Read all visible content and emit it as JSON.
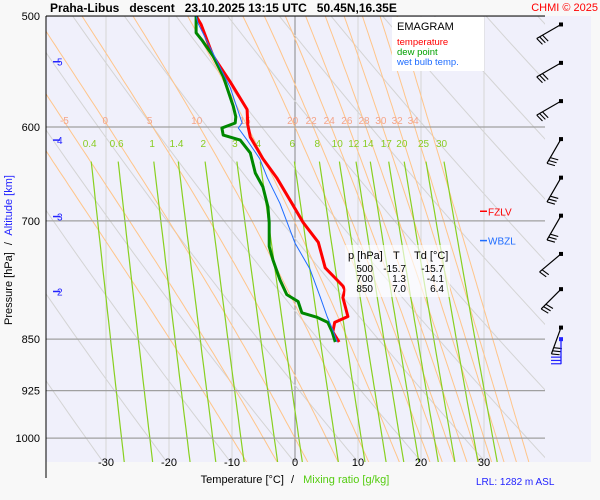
{
  "header": {
    "title": "Praha-Libus   descent   23.10.2025 13:15 UTC   50.45N,16.35E",
    "copyright": "CHMI © 2025"
  },
  "chart_data": {
    "type": "line",
    "diagram": "EMAGRAM",
    "xlabel_temp": "Temperature [°C]",
    "xlabel_sep": "/",
    "xlabel_mix": "Mixing ratio [g/kg]",
    "ylabel_pressure": "Pressure [hPa]",
    "ylabel_sep": "/",
    "ylabel_alt": "Altitude [km]",
    "xlim": [
      -39.5,
      39.7
    ],
    "ylim_hpa": [
      1040,
      500
    ],
    "x_ticks": [
      "-30",
      "-20",
      "-10",
      "0",
      "10",
      "20",
      "30"
    ],
    "x_tick_values": [
      -30,
      -20,
      -10,
      0,
      10,
      20,
      30
    ],
    "p_ticks": [
      "500",
      "600",
      "700",
      "850",
      "925",
      "1000"
    ],
    "p_tick_values": [
      500,
      600,
      700,
      850,
      925,
      1000
    ],
    "alt_ticks": [
      {
        "label": "5",
        "p": 539
      },
      {
        "label": "4",
        "p": 613
      },
      {
        "label": "3",
        "p": 695
      },
      {
        "label": "2",
        "p": 786
      }
    ],
    "mixing_ratio_labels": [
      "0.4",
      "0.6",
      "1",
      "1.4",
      "2",
      "3",
      "4",
      "6",
      "8",
      "10",
      "12",
      "14",
      "17",
      "20",
      "25",
      "30"
    ],
    "moist_adiabat_labels": [
      "-5",
      "0",
      "5",
      "10",
      "15",
      "20",
      "22",
      "24",
      "26",
      "28",
      "30",
      "32",
      "34"
    ],
    "legend": [
      {
        "label": "temperature",
        "color": "#ff0000"
      },
      {
        "label": "dew point",
        "color": "#00a000"
      },
      {
        "label": "wet bulb temp.",
        "color": "#1e6cff"
      }
    ],
    "series": [
      {
        "name": "temperature",
        "color": "#ff0000",
        "p": [
          500,
          507,
          534,
          557,
          583,
          598,
          610,
          632,
          652,
          680,
          702,
          725,
          756,
          779,
          784,
          794,
          819,
          827,
          840,
          854
        ],
        "t": [
          -15.7,
          -14.9,
          -13.0,
          -10.3,
          -7.6,
          -7.5,
          -7.1,
          -5.1,
          -2.9,
          -0.5,
          1.3,
          3.7,
          4.8,
          7.6,
          7.9,
          7.6,
          8.4,
          6.3,
          6.0,
          7.0
        ]
      },
      {
        "name": "dew point",
        "color": "#008800",
        "p": [
          500,
          514,
          520,
          534,
          552,
          580,
          590,
          596,
          601,
          608,
          613,
          626,
          647,
          662,
          684,
          702,
          730,
          746,
          771,
          790,
          799,
          814,
          820,
          827,
          840,
          854
        ],
        "t": [
          -15.7,
          -15.7,
          -14.8,
          -13.0,
          -11.4,
          -9.8,
          -9.4,
          -9.5,
          -11.6,
          -11.4,
          -8.7,
          -7.1,
          -6.3,
          -5.1,
          -4.3,
          -4.1,
          -4.1,
          -3.5,
          -2.4,
          -1.3,
          0.5,
          1.1,
          3.5,
          5.2,
          5.9,
          6.4
        ]
      },
      {
        "name": "wet bulb temp.",
        "color": "#1e6cff",
        "p": [
          500,
          506,
          562,
          596,
          601,
          613,
          632,
          652,
          680,
          726,
          758,
          793,
          819,
          837,
          854
        ],
        "t": [
          -15.7,
          -15.4,
          -10.3,
          -8.4,
          -9.0,
          -7.6,
          -5.6,
          -4.4,
          -2.4,
          0.0,
          2.4,
          4.0,
          5.1,
          6.0,
          6.7
        ]
      }
    ],
    "levels_table": {
      "headers": [
        "p [hPa]",
        "T",
        "Td [°C]"
      ],
      "rows": [
        [
          "500",
          "-15.7",
          "-15.7"
        ],
        [
          "700",
          "1.3",
          "-4.1"
        ],
        [
          "850",
          "7.0",
          "6.4"
        ]
      ]
    },
    "markers": [
      {
        "label": "FZLV",
        "p": 689,
        "color": "#ff0000"
      },
      {
        "label": "WBZL",
        "p": 723,
        "color": "#1e6cff"
      }
    ],
    "wind_barbs": [
      {
        "p": 507,
        "dir": 240,
        "barbs": 3
      },
      {
        "p": 540,
        "dir": 240,
        "barbs": 3
      },
      {
        "p": 575,
        "dir": 240,
        "barbs": 3
      },
      {
        "p": 612,
        "dir": 210,
        "barbs": 3
      },
      {
        "p": 652,
        "dir": 210,
        "barbs": 3
      },
      {
        "p": 694,
        "dir": 210,
        "barbs": 3
      },
      {
        "p": 739,
        "dir": 230,
        "barbs": 2
      },
      {
        "p": 783,
        "dir": 225,
        "barbs": 3
      },
      {
        "p": 834,
        "dir": 200,
        "barbs": 3
      },
      {
        "p": 850,
        "dir": 180,
        "barbs": 3,
        "surface": true
      }
    ],
    "lrl": "LRL: 1282 m ASL"
  }
}
